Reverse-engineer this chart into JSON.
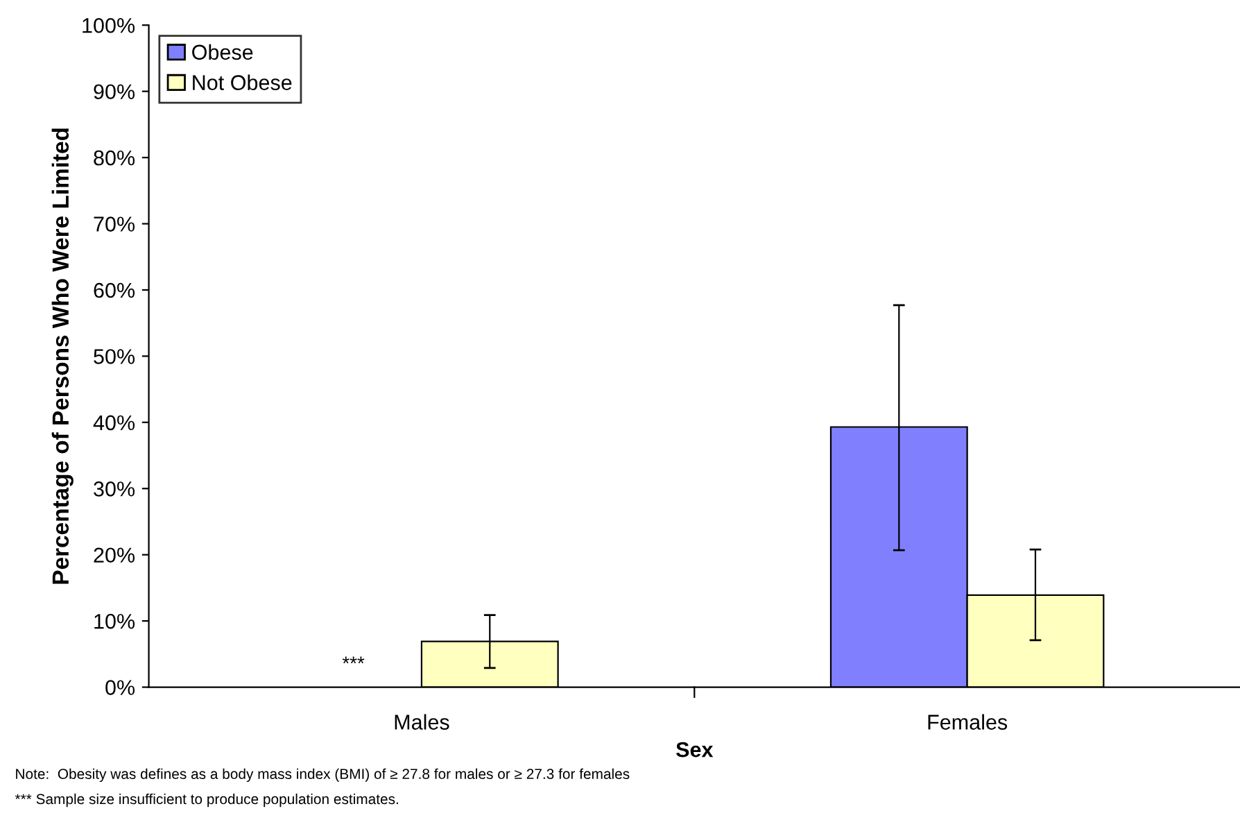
{
  "chart_data": {
    "type": "bar",
    "xlabel": "Sex",
    "ylabel": "Percentage of Persons Who Were Limited",
    "categories": [
      "Males",
      "Females"
    ],
    "series": [
      {
        "name": "Obese",
        "color": "#8080ff",
        "values": [
          null,
          39.3
        ],
        "errors": [
          null,
          [
            20.7,
            57.7
          ]
        ]
      },
      {
        "name": "Not Obese",
        "color": "#ffffc0",
        "values": [
          6.9,
          13.9
        ],
        "errors": [
          [
            2.9,
            10.9
          ],
          [
            7.1,
            20.8
          ]
        ]
      }
    ],
    "ylim": [
      0,
      100
    ],
    "yticks": [
      {
        "value": 0,
        "label": "0%"
      },
      {
        "value": 10,
        "label": "10%"
      },
      {
        "value": 20,
        "label": "20%"
      },
      {
        "value": 30,
        "label": "30%"
      },
      {
        "value": 40,
        "label": "40%"
      },
      {
        "value": 50,
        "label": "50%"
      },
      {
        "value": 60,
        "label": "60%"
      },
      {
        "value": 70,
        "label": "70%"
      },
      {
        "value": 80,
        "label": "80%"
      },
      {
        "value": 90,
        "label": "90%"
      },
      {
        "value": 100,
        "label": "100%"
      }
    ],
    "grid": false,
    "legend": "top left",
    "annotations": [
      "***",
      "Note:  Obesity was defines as a body mass index (BMI) of ≥ 27.8 for males or ≥ 27.3 for females",
      "*** Sample size insufficient to produce population estimates."
    ]
  }
}
